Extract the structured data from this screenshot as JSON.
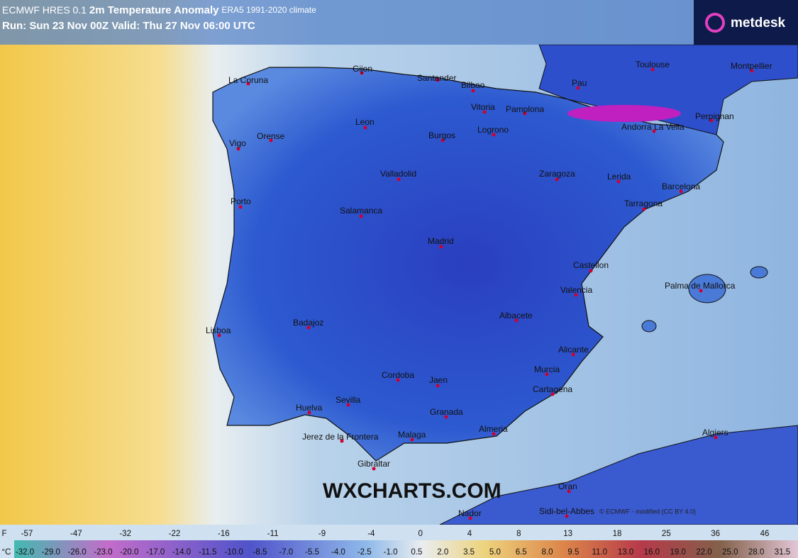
{
  "header": {
    "model": "ECMWF HRES 0.1",
    "parameter": "2m Temperature Anomaly",
    "climate": "ERA5 1991-2020 climate",
    "run": "Run: Sun 23 Nov 00Z Valid: Thu 27 Nov 06:00 UTC",
    "brand": "metdesk"
  },
  "watermark": "WXCHARTS.COM",
  "credit": "© ECMWF - modified (CC BY 4.0)",
  "cities": [
    "La Coruna",
    "Gijon",
    "Santander",
    "Bilbao",
    "Vitoria",
    "Pamplona",
    "Pau",
    "Toulouse",
    "Montpellier",
    "Perpignan",
    "Andorra La Vella",
    "Leon",
    "Burgos",
    "Logrono",
    "Orense",
    "Vigo",
    "Valladolid",
    "Zaragoza",
    "Lerida",
    "Barcelona",
    "Tarragona",
    "Porto",
    "Salamanca",
    "Madrid",
    "Castellon",
    "Palma de Mallorca",
    "Valencia",
    "Albacete",
    "Badajoz",
    "Lisboa",
    "Alicante",
    "Murcia",
    "Cordoba",
    "Jaen",
    "Cartagena",
    "Sevilla",
    "Huelva",
    "Granada",
    "Almeria",
    "Algiers",
    "Jerez de la Frontera",
    "Malaga",
    "Gibraltar",
    "Oran",
    "Nador",
    "Sidi-bel-Abbes"
  ],
  "legend": {
    "f_unit": "F",
    "f_labels": [
      "-57",
      "-47",
      "-32",
      "-22",
      "-16",
      "-11",
      "-9",
      "-4",
      "0",
      "4",
      "8",
      "13",
      "18",
      "25",
      "36",
      "46"
    ],
    "c_unit": "°C",
    "c_labels": [
      "-32.0",
      "-29.0",
      "-26.0",
      "-23.0",
      "-20.0",
      "-17.0",
      "-14.0",
      "-11.5",
      "-10.0",
      "-8.5",
      "-7.0",
      "-5.5",
      "-4.0",
      "-2.5",
      "-1.0",
      "0.5",
      "2.0",
      "3.5",
      "5.0",
      "6.5",
      "8.0",
      "9.5",
      "11.0",
      "13.0",
      "16.0",
      "19.0",
      "22.0",
      "25.0",
      "28.0",
      "31.5"
    ]
  }
}
